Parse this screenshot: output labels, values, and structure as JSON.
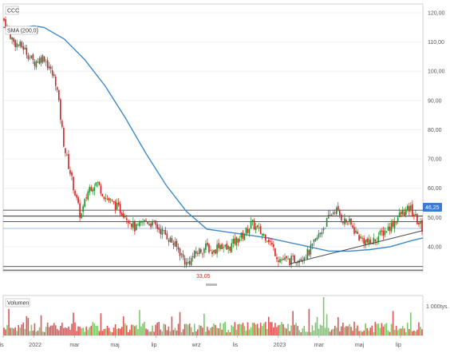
{
  "chart_data": {
    "type": "candlestick",
    "ticker": "CCC",
    "indicator_label": "SMA (200,0)",
    "volume_label": "Volumen",
    "volume_axis_label": "1 000tys.",
    "low_marker_label": "33,05",
    "last_price_label": "46,25",
    "x_tick_labels": [
      "lis",
      "2022",
      "mar",
      "maj",
      "lip",
      "wrz",
      "lis",
      "2023",
      "mar",
      "maj",
      "lip"
    ],
    "y_tick_labels": [
      "120,00",
      "110,00",
      "100,00",
      "90,00",
      "80,00",
      "70,00",
      "60,00",
      "50,00",
      "40,00"
    ],
    "y_ticks": [
      120,
      110,
      100,
      90,
      80,
      70,
      60,
      50,
      40
    ],
    "ylim": [
      31.5,
      123
    ],
    "price_path_months": [
      0,
      0.5,
      1,
      1.5,
      2,
      2.6,
      3,
      3.4,
      3.8,
      4.2,
      4.6,
      5,
      5.5,
      6,
      6.5,
      7,
      7.5,
      8,
      8.6,
      9,
      9.5,
      10,
      10.3,
      10.6,
      11,
      11.4,
      11.8,
      12.2,
      12.6,
      13,
      13.5,
      14,
      14.5,
      15,
      15.5,
      16,
      16.3,
      16.7,
      17,
      17.5,
      18,
      18.5,
      19,
      19.5,
      20,
      20.3,
      20.6
    ],
    "price_path_values": [
      118,
      110,
      108,
      103,
      105,
      96,
      74,
      62,
      50,
      60,
      62,
      57,
      54,
      51,
      46,
      49,
      47,
      44,
      39,
      34,
      38,
      40,
      38,
      41,
      39,
      42,
      44,
      48,
      45,
      43,
      36,
      35,
      36,
      38,
      44,
      50,
      53,
      49,
      48,
      43,
      41,
      44,
      47,
      51,
      53,
      49,
      46
    ],
    "sma_months": [
      0,
      1,
      1.5,
      2,
      3,
      4,
      5,
      6,
      7,
      8,
      9,
      10,
      10.5,
      11,
      12,
      13,
      14,
      15,
      16,
      17,
      18,
      19,
      20,
      20.6
    ],
    "sma_values": [
      115,
      115,
      115.5,
      115,
      111,
      104,
      95,
      84,
      72,
      61,
      52,
      46,
      45.5,
      45,
      44,
      43,
      41.5,
      40,
      38.5,
      38.5,
      39,
      40,
      42,
      43
    ],
    "horizontal_levels": [
      52.5,
      50.5,
      48.6,
      33.2,
      32
    ],
    "trendlines": [
      {
        "from": [
          14.1,
          34.2
        ],
        "to": [
          20.6,
          45.5
        ]
      }
    ],
    "colors": {
      "up": "#1e8f2e",
      "down": "#d42020",
      "sma": "#3d89c9",
      "level": "#222222",
      "last_price_bg": "#3a7bd5",
      "low_marker": "#c62828"
    }
  }
}
